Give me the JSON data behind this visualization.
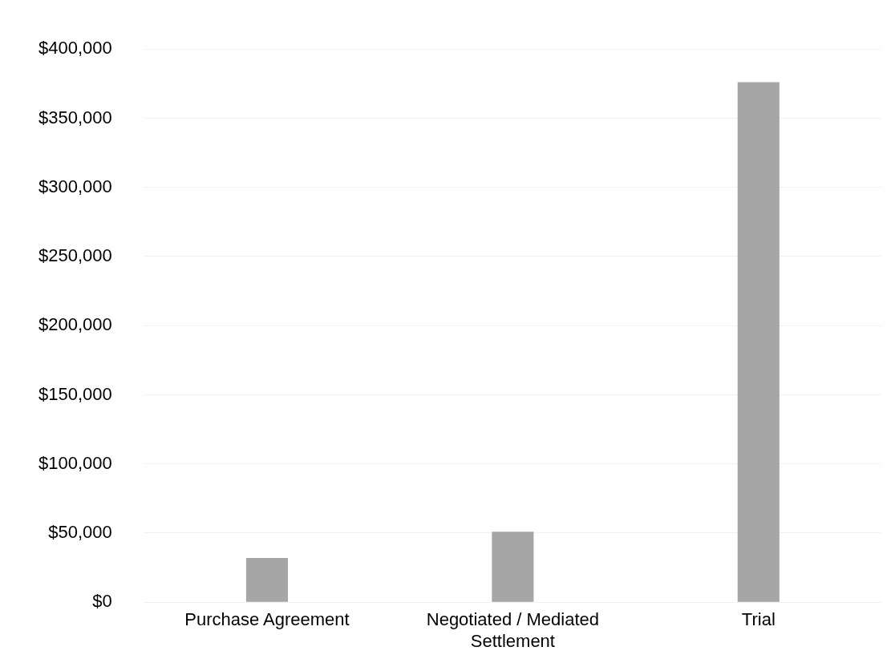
{
  "chart_data": {
    "type": "bar",
    "categories": [
      "Purchase Agreement",
      "Negotiated / Mediated Settlement",
      "Trial"
    ],
    "values": [
      32000,
      51000,
      376000
    ],
    "color": "#a6a6a6",
    "ylim": [
      0,
      400000
    ],
    "yticks": [
      {
        "value": 0,
        "label": "$0"
      },
      {
        "value": 50000,
        "label": "$50,000"
      },
      {
        "value": 100000,
        "label": "$100,000"
      },
      {
        "value": 150000,
        "label": "$150,000"
      },
      {
        "value": 200000,
        "label": "$200,000"
      },
      {
        "value": 250000,
        "label": "$250,000"
      },
      {
        "value": 300000,
        "label": "$300,000"
      },
      {
        "value": 350000,
        "label": "$350,000"
      },
      {
        "value": 400000,
        "label": "$400,000"
      }
    ],
    "grid": "y",
    "legend": false
  }
}
